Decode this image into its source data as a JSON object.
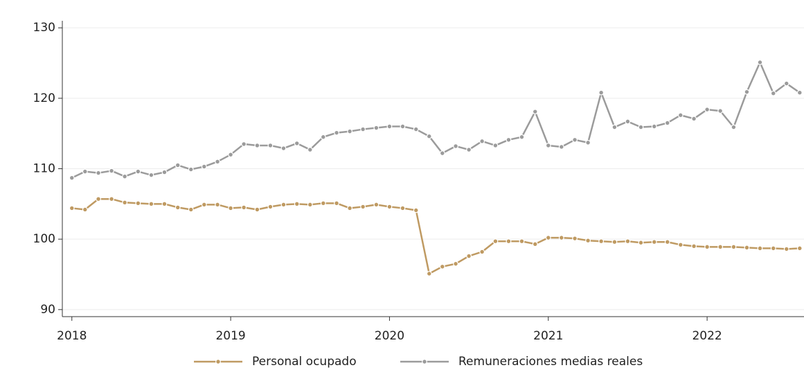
{
  "chart_data": {
    "type": "line",
    "x": [
      2018,
      2018.083,
      2018.167,
      2018.25,
      2018.333,
      2018.417,
      2018.5,
      2018.583,
      2018.667,
      2018.75,
      2018.833,
      2018.917,
      2019,
      2019.083,
      2019.167,
      2019.25,
      2019.333,
      2019.417,
      2019.5,
      2019.583,
      2019.667,
      2019.75,
      2019.833,
      2019.917,
      2020,
      2020.083,
      2020.167,
      2020.25,
      2020.333,
      2020.417,
      2020.5,
      2020.583,
      2020.667,
      2020.75,
      2020.833,
      2020.917,
      2021,
      2021.083,
      2021.167,
      2021.25,
      2021.333,
      2021.417,
      2021.5,
      2021.583,
      2021.667,
      2021.75,
      2021.833,
      2021.917,
      2022,
      2022.083,
      2022.167,
      2022.25,
      2022.333,
      2022.417,
      2022.5,
      2022.583
    ],
    "series": [
      {
        "name": "Personal ocupado",
        "color": "#bf9a62",
        "values": [
          104.4,
          104.2,
          105.7,
          105.7,
          105.2,
          105.1,
          105.0,
          105.0,
          104.5,
          104.2,
          104.9,
          104.9,
          104.4,
          104.5,
          104.2,
          104.6,
          104.9,
          105.0,
          104.9,
          105.1,
          105.1,
          104.4,
          104.6,
          104.9,
          104.6,
          104.4,
          104.1,
          95.1,
          96.1,
          96.5,
          97.6,
          98.2,
          99.7,
          99.7,
          99.7,
          99.3,
          100.2,
          100.2,
          100.1,
          99.8,
          99.7,
          99.6,
          99.7,
          99.5,
          99.6,
          99.6,
          99.2,
          99.0,
          98.9,
          98.9,
          98.9,
          98.8,
          98.7,
          98.7,
          98.6,
          98.7
        ]
      },
      {
        "name": "Remuneraciones medias reales",
        "color": "#9b9b9b",
        "values": [
          108.7,
          109.6,
          109.4,
          109.7,
          108.9,
          109.6,
          109.1,
          109.5,
          110.5,
          109.9,
          110.3,
          111.0,
          112.0,
          113.5,
          113.3,
          113.3,
          112.9,
          113.6,
          112.7,
          114.5,
          115.1,
          115.3,
          115.6,
          115.8,
          116.0,
          116.0,
          115.6,
          114.6,
          112.2,
          113.2,
          112.7,
          113.9,
          113.3,
          114.1,
          114.5,
          118.1,
          113.3,
          113.1,
          114.1,
          113.7,
          120.8,
          115.9,
          116.7,
          115.9,
          116.0,
          116.5,
          117.6,
          117.1,
          118.4,
          118.2,
          115.9,
          120.9,
          125.1,
          120.7,
          122.1,
          120.8
        ]
      }
    ],
    "xlim": [
      2017.94,
      2022.61
    ],
    "xticks": [
      2018,
      2019,
      2020,
      2021,
      2022
    ],
    "ylim": [
      89,
      131
    ],
    "yticks": [
      90,
      100,
      110,
      120,
      130
    ],
    "grid": true
  }
}
